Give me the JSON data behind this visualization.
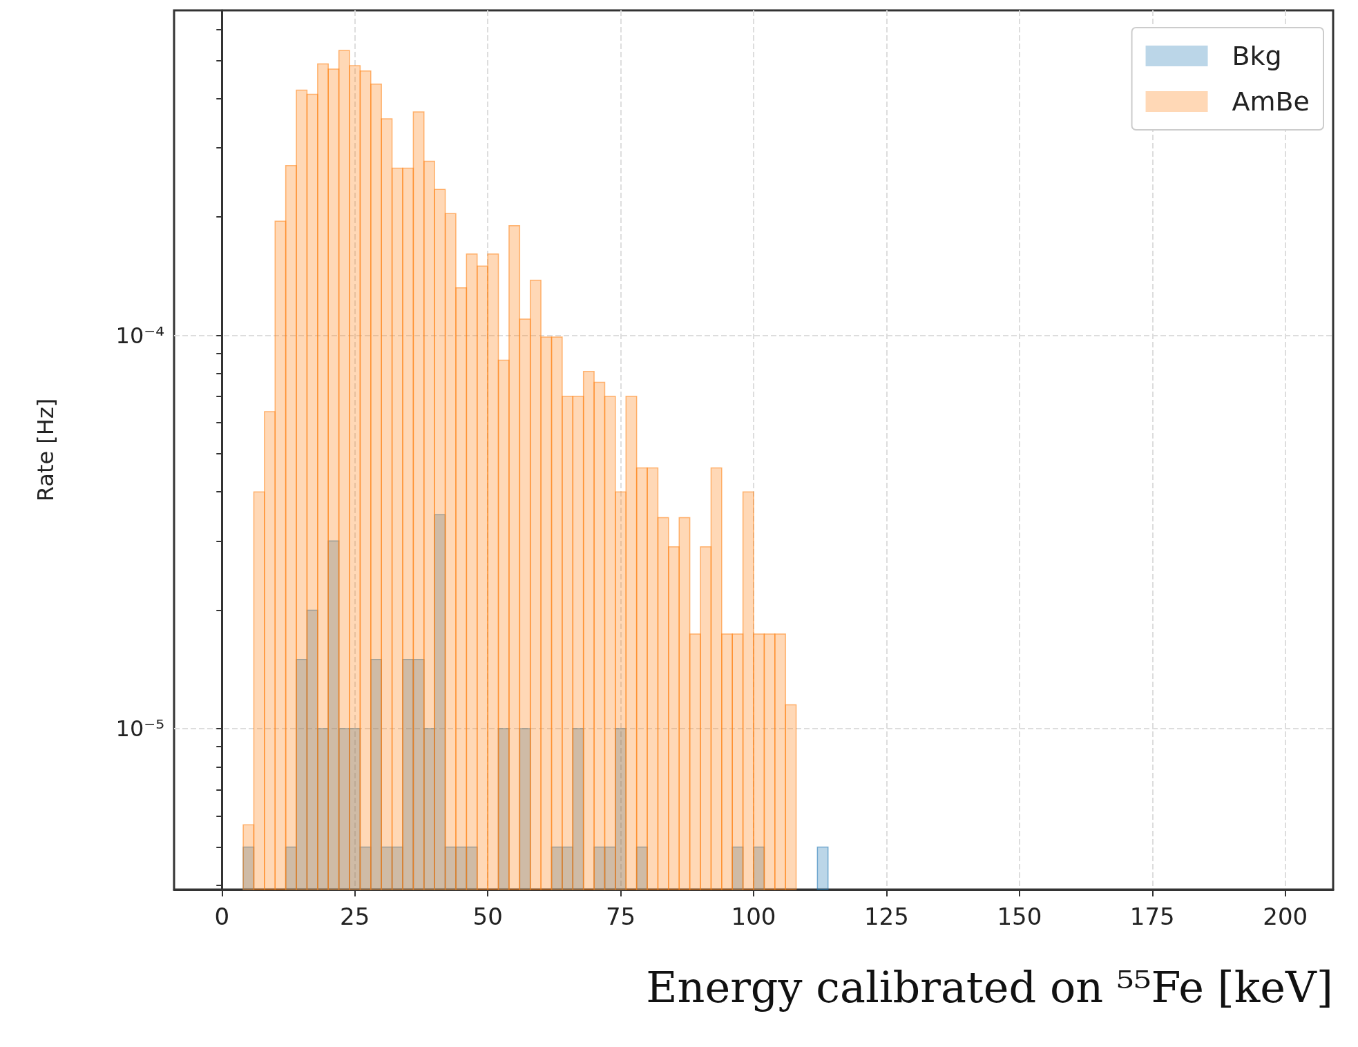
{
  "chart_data": {
    "type": "histogram",
    "xlabel": "Energy calibrated on ⁵⁵Fe [keV]",
    "ylabel": "Rate [Hz]",
    "bins": [
      4,
      6,
      8,
      10,
      12,
      14,
      16,
      18,
      20,
      22,
      24,
      26,
      28,
      30,
      32,
      34,
      36,
      38,
      40,
      42,
      44,
      46,
      48,
      50,
      52,
      54,
      56,
      58,
      60,
      62,
      64,
      66,
      68,
      70,
      72,
      74,
      76,
      78,
      80,
      82,
      84,
      86,
      88,
      90,
      92,
      94,
      96,
      98,
      100,
      102,
      104,
      106,
      108,
      110,
      112,
      114
    ],
    "series": [
      {
        "name": "Bkg",
        "color": "#1f77b4",
        "values": [
          5e-06,
          null,
          null,
          null,
          5e-06,
          1.5e-05,
          2e-05,
          1e-05,
          3e-05,
          1e-05,
          1e-05,
          5e-06,
          1.5e-05,
          5e-06,
          5e-06,
          1.5e-05,
          1.5e-05,
          1e-05,
          3.5e-05,
          5e-06,
          5e-06,
          5e-06,
          null,
          null,
          1e-05,
          null,
          1e-05,
          null,
          null,
          5e-06,
          5e-06,
          1e-05,
          null,
          5e-06,
          5e-06,
          1e-05,
          null,
          5e-06,
          null,
          null,
          null,
          null,
          null,
          null,
          null,
          null,
          5e-06,
          null,
          5e-06,
          null,
          null,
          null,
          null,
          null,
          5e-06
        ]
      },
      {
        "name": "AmBe",
        "color": "#ff7f0e",
        "values": [
          5.7e-06,
          4e-05,
          6.4e-05,
          0.000195,
          0.00027,
          0.00042,
          0.00041,
          0.00049,
          0.000475,
          0.00053,
          0.000485,
          0.00047,
          0.000435,
          0.000355,
          0.000266,
          0.000266,
          0.00037,
          0.000277,
          0.000235,
          0.000204,
          0.000132,
          0.000161,
          0.00015,
          0.000161,
          8.65e-05,
          0.00019,
          0.00011,
          0.000138,
          9.9e-05,
          9.9e-05,
          7e-05,
          7e-05,
          8.1e-05,
          7.6e-05,
          7e-05,
          4e-05,
          7e-05,
          4.6e-05,
          4.6e-05,
          3.44e-05,
          2.9e-05,
          3.44e-05,
          1.74e-05,
          2.9e-05,
          4.6e-05,
          1.74e-05,
          1.74e-05,
          4e-05,
          1.74e-05,
          1.74e-05,
          1.74e-05,
          1.15e-05,
          null,
          null,
          null
        ]
      }
    ],
    "xlim": [
      -9,
      209
    ],
    "xticks": [
      0,
      25,
      50,
      75,
      100,
      125,
      150,
      175,
      200
    ],
    "ylim": [
      3.9e-06,
      0.00067
    ],
    "yticks": [
      {
        "value": 4e-06,
        "label": null
      },
      {
        "value": 5e-06,
        "label": null
      },
      {
        "value": 6e-06,
        "label": null
      },
      {
        "value": 7e-06,
        "label": null
      },
      {
        "value": 8e-06,
        "label": null
      },
      {
        "value": 9e-06,
        "label": null
      },
      {
        "value": 1e-05,
        "label": "10⁻⁵"
      },
      {
        "value": 2e-05,
        "label": null
      },
      {
        "value": 3e-05,
        "label": null
      },
      {
        "value": 4e-05,
        "label": null
      },
      {
        "value": 5e-05,
        "label": null
      },
      {
        "value": 6e-05,
        "label": null
      },
      {
        "value": 7e-05,
        "label": null
      },
      {
        "value": 8e-05,
        "label": null
      },
      {
        "value": 9e-05,
        "label": null
      },
      {
        "value": 0.0001,
        "label": "10⁻⁴"
      },
      {
        "value": 0.0002,
        "label": null
      },
      {
        "value": 0.0003,
        "label": null
      },
      {
        "value": 0.0004,
        "label": null
      },
      {
        "value": 0.0005,
        "label": null
      },
      {
        "value": 0.0006,
        "label": null
      }
    ],
    "log": "y",
    "grid": true,
    "legend": "top right"
  }
}
